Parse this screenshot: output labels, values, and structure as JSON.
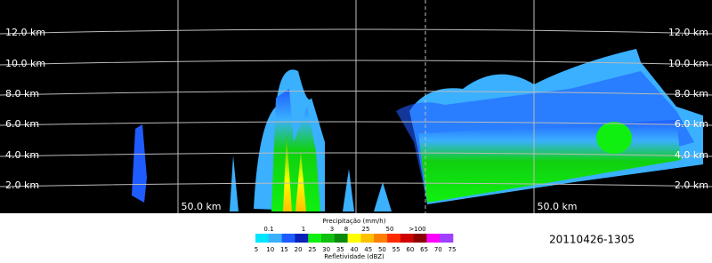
{
  "radar": {
    "height_labels_left": [
      "12.0 km",
      "10.0 km",
      "8.0 km",
      "6.0 km",
      "4.0 km",
      "2.0 km"
    ],
    "height_labels_right": [
      "12.0 km",
      "10.0 km",
      "8.0 km",
      "6.0 km",
      "4.0 km",
      "2.0 km"
    ],
    "range_labels": [
      "50.0 km",
      "50.0 km"
    ]
  },
  "colorbar": {
    "precip_title": "Precipitação (mm/h)",
    "precip_labels": [
      "0.1",
      "1",
      "3",
      "8",
      "25",
      "50",
      ">100"
    ],
    "dbz_labels": [
      "5",
      "10",
      "15",
      "20",
      "25",
      "30",
      "35",
      "40",
      "45",
      "50",
      "55",
      "60",
      "65",
      "70",
      "75"
    ],
    "dbz_title": "Refletividade (dBZ)",
    "colors": [
      "#00e5ff",
      "#3ab0ff",
      "#1e5cff",
      "#0a22b8",
      "#10f010",
      "#10c010",
      "#0a8a0a",
      "#ffff00",
      "#ffc000",
      "#ff7f00",
      "#ff2a00",
      "#d00000",
      "#8a0000",
      "#ff00ff",
      "#a040ff"
    ]
  },
  "timestamp": "20110426-1305"
}
